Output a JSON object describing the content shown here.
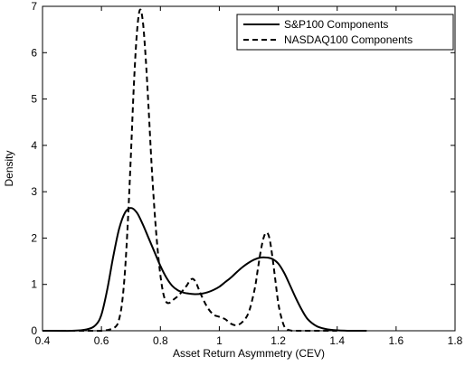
{
  "chart_data": {
    "type": "line",
    "title": "",
    "xlabel": "Asset Return Asymmetry (CEV)",
    "ylabel": "Density",
    "xlim": [
      0.4,
      1.8
    ],
    "ylim": [
      0,
      7
    ],
    "xticks": [
      0.4,
      0.6,
      0.8,
      1,
      1.2,
      1.4,
      1.6,
      1.8
    ],
    "xtick_labels": [
      "0.4",
      "0.6",
      "0.8",
      "1",
      "1.2",
      "1.4",
      "1.6",
      "1.8"
    ],
    "yticks": [
      0,
      1,
      2,
      3,
      4,
      5,
      6,
      7
    ],
    "ytick_labels": [
      "0",
      "1",
      "2",
      "3",
      "4",
      "5",
      "6",
      "7"
    ],
    "grid": false,
    "legend_position": "top-right",
    "series": [
      {
        "name": "S&P100 Components",
        "style": "solid",
        "color": "#000000",
        "x": [
          0.4,
          0.5,
          0.55,
          0.58,
          0.6,
          0.62,
          0.64,
          0.66,
          0.68,
          0.7,
          0.72,
          0.74,
          0.76,
          0.78,
          0.8,
          0.82,
          0.84,
          0.86,
          0.88,
          0.9,
          0.92,
          0.94,
          0.96,
          0.98,
          1.0,
          1.02,
          1.04,
          1.06,
          1.08,
          1.1,
          1.12,
          1.14,
          1.16,
          1.18,
          1.2,
          1.22,
          1.24,
          1.26,
          1.28,
          1.3,
          1.33,
          1.36,
          1.4,
          1.45,
          1.5
        ],
        "y": [
          0,
          0,
          0.03,
          0.12,
          0.35,
          0.9,
          1.6,
          2.2,
          2.55,
          2.65,
          2.55,
          2.3,
          2.0,
          1.7,
          1.4,
          1.15,
          0.97,
          0.87,
          0.82,
          0.8,
          0.79,
          0.8,
          0.83,
          0.88,
          0.95,
          1.05,
          1.15,
          1.27,
          1.38,
          1.47,
          1.54,
          1.58,
          1.58,
          1.55,
          1.45,
          1.25,
          0.98,
          0.7,
          0.45,
          0.25,
          0.1,
          0.04,
          0.01,
          0,
          0
        ]
      },
      {
        "name": "NASDAQ100 Components",
        "style": "dashed",
        "color": "#000000",
        "x": [
          0.4,
          0.55,
          0.6,
          0.63,
          0.65,
          0.66,
          0.67,
          0.68,
          0.69,
          0.7,
          0.71,
          0.72,
          0.73,
          0.74,
          0.75,
          0.76,
          0.77,
          0.78,
          0.79,
          0.8,
          0.81,
          0.82,
          0.83,
          0.84,
          0.85,
          0.86,
          0.87,
          0.88,
          0.89,
          0.9,
          0.91,
          0.92,
          0.93,
          0.94,
          0.96,
          0.98,
          1.0,
          1.02,
          1.04,
          1.06,
          1.08,
          1.1,
          1.12,
          1.13,
          1.14,
          1.15,
          1.16,
          1.17,
          1.18,
          1.19,
          1.2,
          1.21,
          1.22,
          1.23,
          1.24,
          1.25,
          1.28,
          1.35,
          1.4
        ],
        "y": [
          0,
          0,
          0,
          0.03,
          0.1,
          0.25,
          0.6,
          1.3,
          2.4,
          3.8,
          5.3,
          6.4,
          6.92,
          6.7,
          5.9,
          4.8,
          3.6,
          2.6,
          1.8,
          1.2,
          0.8,
          0.62,
          0.6,
          0.65,
          0.7,
          0.75,
          0.82,
          0.9,
          0.98,
          1.08,
          1.12,
          1.05,
          0.9,
          0.75,
          0.5,
          0.35,
          0.3,
          0.25,
          0.15,
          0.12,
          0.2,
          0.4,
          0.9,
          1.3,
          1.7,
          2.0,
          2.12,
          2.0,
          1.6,
          1.1,
          0.6,
          0.3,
          0.1,
          0.03,
          0.01,
          0,
          0,
          0,
          0
        ]
      }
    ]
  }
}
